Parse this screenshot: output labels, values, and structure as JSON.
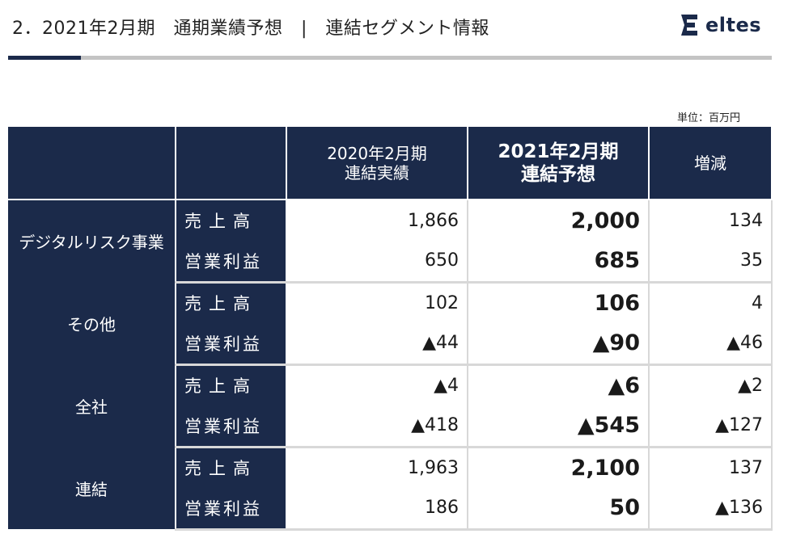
{
  "header": {
    "title": "2．2021年2月期　通期業績予想　|　連結セグメント情報",
    "logo_text": "eltes"
  },
  "unit_note": "単位：百万円",
  "table": {
    "col_headers": [
      {
        "lines": [
          "2020年2月期",
          "連結実績"
        ]
      },
      {
        "lines": [
          "2021年2月期",
          "連結予想"
        ]
      },
      {
        "lines": [
          "増減"
        ]
      }
    ],
    "segments": [
      {
        "name": "デジタルリスク事業",
        "rows": [
          {
            "metric": "売上高",
            "values": [
              "1,866",
              "2,000",
              "134"
            ]
          },
          {
            "metric": "営業利益",
            "values": [
              "650",
              "685",
              "35"
            ]
          }
        ]
      },
      {
        "name": "その他",
        "rows": [
          {
            "metric": "売上高",
            "values": [
              "102",
              "106",
              "4"
            ]
          },
          {
            "metric": "営業利益",
            "values": [
              "▲44",
              "▲90",
              "▲46"
            ]
          }
        ]
      },
      {
        "name": "全社",
        "rows": [
          {
            "metric": "売上高",
            "values": [
              "▲4",
              "▲6",
              "▲2"
            ]
          },
          {
            "metric": "営業利益",
            "values": [
              "▲418",
              "▲545",
              "▲127"
            ]
          }
        ]
      },
      {
        "name": "連結",
        "rows": [
          {
            "metric": "売上高",
            "values": [
              "1,963",
              "2,100",
              "137"
            ]
          },
          {
            "metric": "営業利益",
            "values": [
              "186",
              "50",
              "▲136"
            ]
          }
        ]
      }
    ]
  },
  "colors": {
    "navy": "#1b2a4a",
    "rule_gray": "#c4c4c4",
    "grid_gray": "#d8d8d8"
  }
}
